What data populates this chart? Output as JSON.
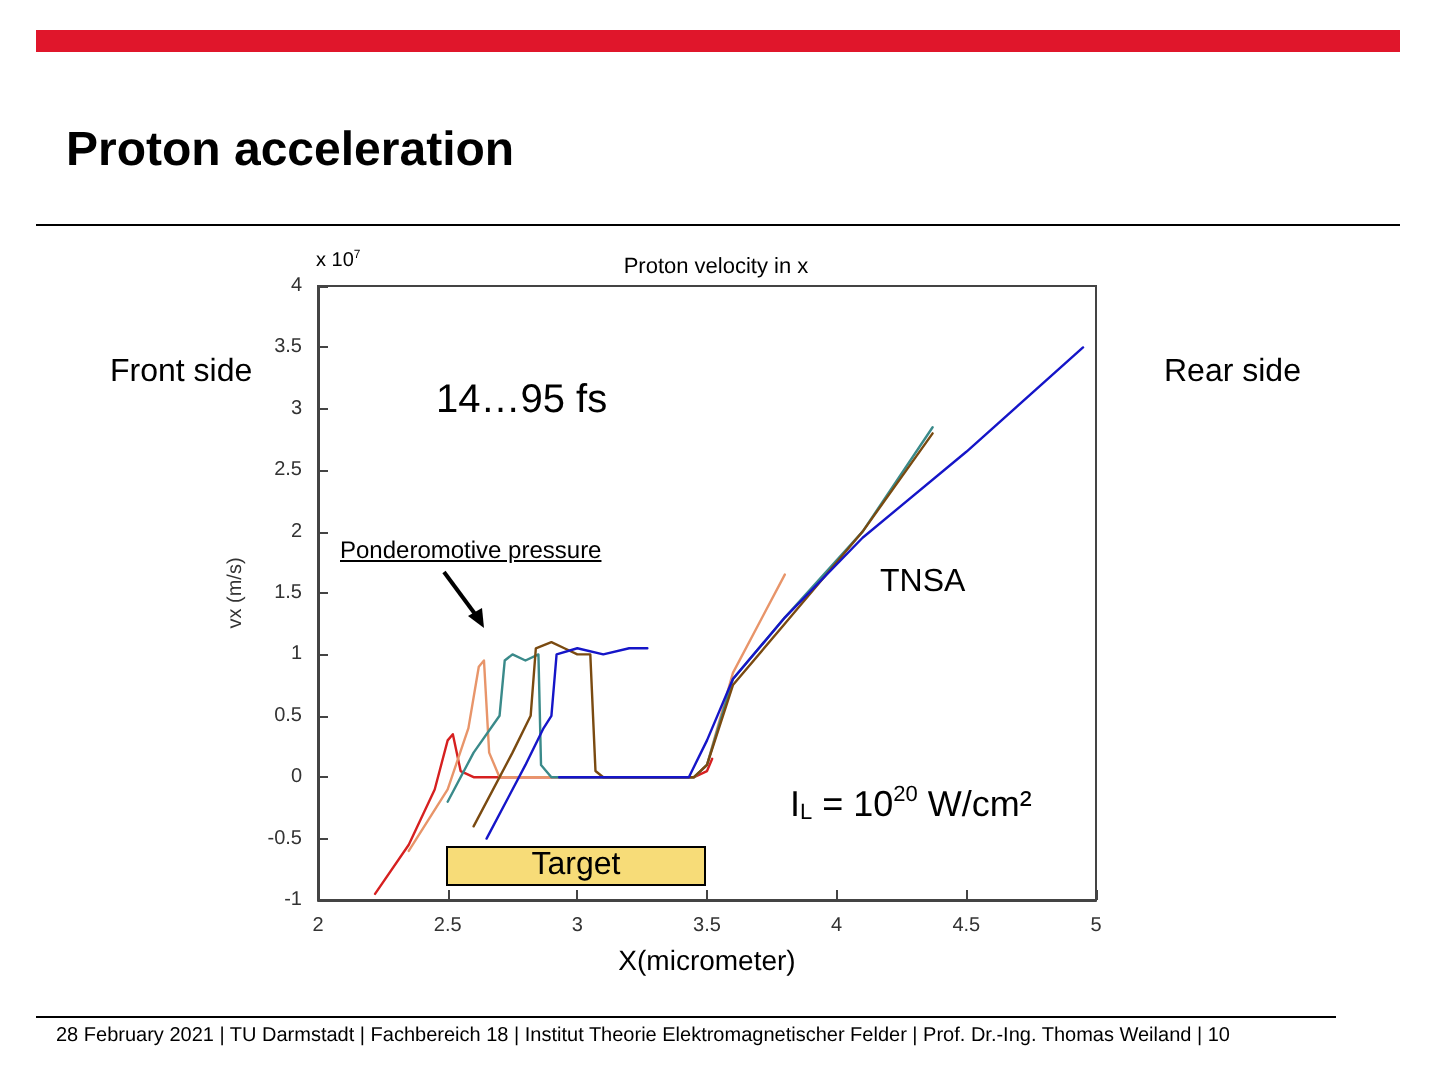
{
  "chart_data": {
    "type": "line",
    "title": "Proton acceleration",
    "subtitle": "Proton velocity in x",
    "xlabel": "X(micrometer)",
    "ylabel": "vx (m/s)",
    "xlim": [
      2,
      5
    ],
    "xticks": [
      2,
      2.5,
      3,
      3.5,
      4,
      4.5,
      5
    ],
    "ylim": [
      -1,
      4
    ],
    "yticks": [
      -1,
      -0.5,
      0,
      0.5,
      1,
      1.5,
      2,
      2.5,
      3,
      3.5,
      4
    ],
    "grid": false,
    "marker": "none",
    "line_style": "solid",
    "series": [
      {
        "color": "#d62020",
        "x": [
          2.22,
          2.35,
          2.45,
          2.5,
          2.52,
          2.55,
          2.6,
          3.0,
          3.45,
          3.5,
          3.52
        ],
        "values": [
          -0.95,
          -0.55,
          -0.1,
          0.3,
          0.35,
          0.05,
          0.0,
          0.0,
          0.0,
          0.05,
          0.15
        ]
      },
      {
        "color": "#e8956a",
        "x": [
          2.35,
          2.5,
          2.58,
          2.62,
          2.64,
          2.66,
          2.7,
          3.0,
          3.45,
          3.5,
          3.6,
          3.8
        ],
        "values": [
          -0.6,
          -0.1,
          0.4,
          0.9,
          0.95,
          0.2,
          0.0,
          0.0,
          0.0,
          0.1,
          0.85,
          1.65
        ]
      },
      {
        "color": "#3a8a8a",
        "x": [
          2.5,
          2.6,
          2.7,
          2.72,
          2.75,
          2.8,
          2.85,
          2.86,
          2.9,
          3.0,
          3.45,
          3.5,
          3.6,
          3.8,
          4.1,
          4.37
        ],
        "values": [
          -0.2,
          0.2,
          0.5,
          0.95,
          1.0,
          0.95,
          1.0,
          0.1,
          0.0,
          0.0,
          0.0,
          0.1,
          0.8,
          1.3,
          2.0,
          2.85
        ]
      },
      {
        "color": "#7a4a10",
        "x": [
          2.6,
          2.75,
          2.82,
          2.84,
          2.9,
          2.95,
          3.0,
          3.05,
          3.07,
          3.1,
          3.45,
          3.5,
          3.6,
          3.8,
          4.1,
          4.37
        ],
        "values": [
          -0.4,
          0.2,
          0.5,
          1.05,
          1.1,
          1.05,
          1.0,
          1.0,
          0.05,
          0.0,
          0.0,
          0.1,
          0.75,
          1.25,
          2.0,
          2.8
        ]
      },
      {
        "color": "#1515c8",
        "x": [
          2.65,
          2.8,
          2.87,
          2.9,
          2.92,
          3.0,
          3.1,
          3.2,
          3.27,
          null,
          2.93,
          3.2,
          3.43,
          3.5,
          3.6,
          3.8,
          4.1,
          4.5,
          4.95
        ],
        "values": [
          -0.5,
          0.1,
          0.4,
          0.5,
          1.0,
          1.05,
          1.0,
          1.05,
          1.05,
          null,
          0.0,
          0.0,
          0.0,
          0.3,
          0.8,
          1.3,
          1.95,
          2.65,
          3.5
        ]
      }
    ],
    "annotations": [
      "Front side",
      "Rear side",
      "14…95 fs",
      "TNSA",
      "I$_{L}$ = 10$^{20}$ W/cm²",
      "x 10$^{7}$",
      "28 February 2021 | TU Darmstadt | Fachbereich 18 | Institut Theorie Elektromagnetischer Felder | Prof. Dr.-Ing. Thomas Weiland | 10",
      "Ponderomotive pressure",
      "Target"
    ]
  }
}
